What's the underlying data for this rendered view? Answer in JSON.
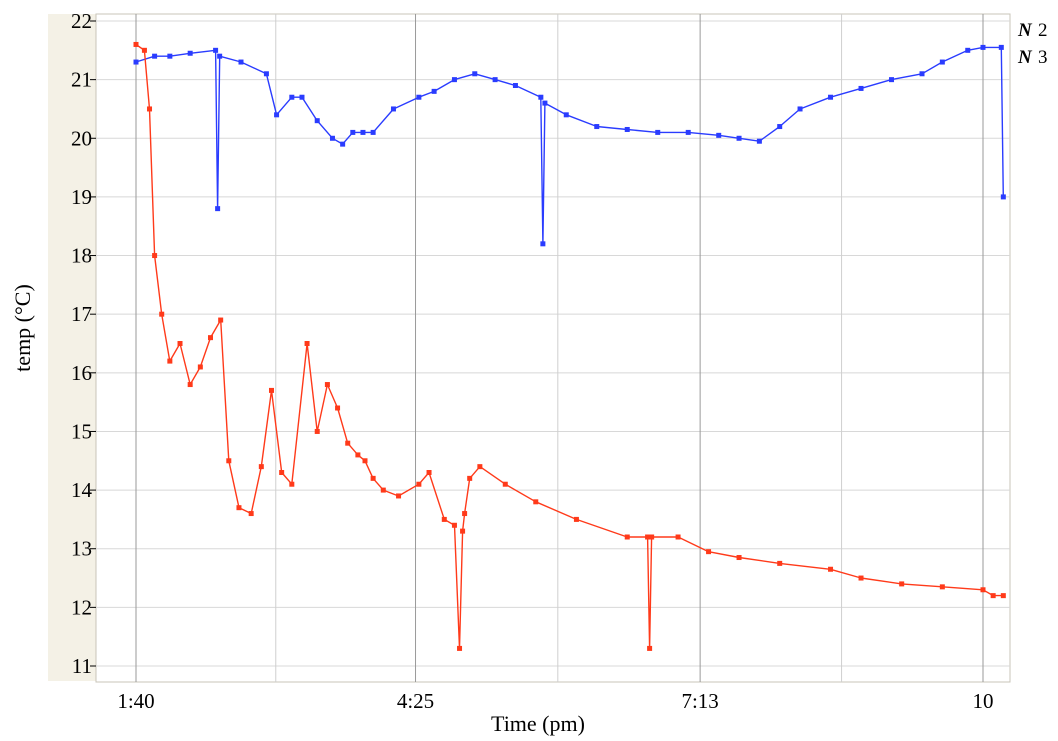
{
  "chart_data": {
    "type": "line",
    "title": "",
    "xlabel": "Time (pm)",
    "ylabel": "temp (°C)",
    "x_tick_labels": [
      "1:40",
      "4:25",
      "7:13",
      "10"
    ],
    "x_tick_values_hours": [
      1.667,
      4.417,
      7.217,
      10.0
    ],
    "xlim_hours": [
      1.667,
      10.0
    ],
    "ylim": [
      11,
      22
    ],
    "y_ticks": [
      11,
      12,
      13,
      14,
      15,
      16,
      17,
      18,
      19,
      20,
      21,
      22
    ],
    "grid": true,
    "legend_position": "top-right",
    "series": [
      {
        "name": "2",
        "color": "#2a3cff",
        "x_hours": [
          1.667,
          1.85,
          2.0,
          2.2,
          2.45,
          2.47,
          2.49,
          2.7,
          2.95,
          3.05,
          3.2,
          3.3,
          3.45,
          3.6,
          3.7,
          3.8,
          3.9,
          4.0,
          4.2,
          4.45,
          4.6,
          4.8,
          5.0,
          5.2,
          5.4,
          5.65,
          5.67,
          5.69,
          5.9,
          6.2,
          6.5,
          6.8,
          7.1,
          7.4,
          7.6,
          7.8,
          8.0,
          8.2,
          8.5,
          8.8,
          9.1,
          9.4,
          9.6,
          9.85,
          10.0,
          10.18,
          10.2
        ],
        "temps": [
          21.3,
          21.4,
          21.4,
          21.45,
          21.5,
          18.8,
          21.4,
          21.3,
          21.1,
          20.4,
          20.7,
          20.7,
          20.3,
          20.0,
          19.9,
          20.1,
          20.1,
          20.1,
          20.5,
          20.7,
          20.8,
          21.0,
          21.1,
          21.0,
          20.9,
          20.7,
          18.2,
          20.6,
          20.4,
          20.2,
          20.15,
          20.1,
          20.1,
          20.05,
          20.0,
          19.95,
          20.2,
          20.5,
          20.7,
          20.85,
          21.0,
          21.1,
          21.3,
          21.5,
          21.55,
          21.55,
          19.0
        ]
      },
      {
        "name": "3",
        "color": "#ff3a1a",
        "x_hours": [
          1.667,
          1.75,
          1.8,
          1.85,
          1.92,
          2.0,
          2.1,
          2.2,
          2.3,
          2.4,
          2.5,
          2.58,
          2.68,
          2.8,
          2.9,
          3.0,
          3.1,
          3.2,
          3.35,
          3.45,
          3.55,
          3.65,
          3.75,
          3.85,
          3.92,
          4.0,
          4.1,
          4.25,
          4.45,
          4.55,
          4.7,
          4.8,
          4.85,
          4.88,
          4.9,
          4.95,
          5.05,
          5.3,
          5.6,
          6.0,
          6.5,
          6.7,
          6.72,
          6.74,
          7.0,
          7.3,
          7.6,
          8.0,
          8.5,
          8.8,
          9.2,
          9.6,
          10.0,
          10.1,
          10.2
        ],
        "temps": [
          21.6,
          21.5,
          20.5,
          18.0,
          17.0,
          16.2,
          16.5,
          15.8,
          16.1,
          16.6,
          16.9,
          14.5,
          13.7,
          13.6,
          14.4,
          15.7,
          14.3,
          14.1,
          16.5,
          15.0,
          15.8,
          15.4,
          14.8,
          14.6,
          14.5,
          14.2,
          14.0,
          13.9,
          14.1,
          14.3,
          13.5,
          13.4,
          11.3,
          13.3,
          13.6,
          14.2,
          14.4,
          14.1,
          13.8,
          13.5,
          13.2,
          13.2,
          11.3,
          13.2,
          13.2,
          12.95,
          12.85,
          12.75,
          12.65,
          12.5,
          12.4,
          12.35,
          12.3,
          12.2,
          12.2
        ]
      }
    ]
  }
}
